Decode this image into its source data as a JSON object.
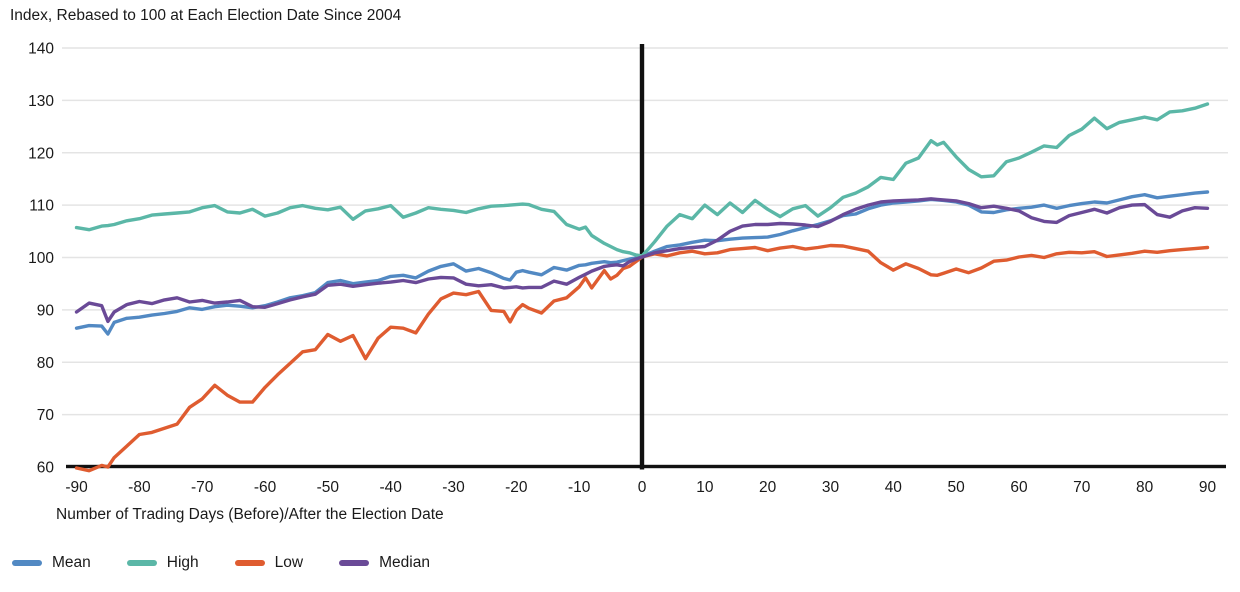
{
  "chart_data": {
    "type": "line",
    "title": "Index, Rebased to 100 at Each Election Date Since 2004",
    "xlabel": "Number of Trading Days (Before)/After the Election Date",
    "ylabel": "",
    "xlim": [
      -90,
      90
    ],
    "ylim": [
      60,
      140
    ],
    "x_ticks": [
      -90,
      -80,
      -70,
      -60,
      -50,
      -40,
      -30,
      -20,
      -10,
      0,
      10,
      20,
      30,
      40,
      50,
      60,
      70,
      80,
      90
    ],
    "y_ticks": [
      60,
      70,
      80,
      90,
      100,
      110,
      120,
      130,
      140
    ],
    "grid": "horizontal",
    "zero_vertical_line": true,
    "legend_position": "bottom-left",
    "colors": {
      "grid": "#e4e4e4",
      "axis": "#111111",
      "text": "#1a1a1a"
    },
    "x": [
      -90,
      -88,
      -86,
      -85,
      -84,
      -82,
      -80,
      -78,
      -76,
      -74,
      -72,
      -70,
      -68,
      -66,
      -64,
      -62,
      -60,
      -58,
      -56,
      -54,
      -52,
      -50,
      -48,
      -46,
      -44,
      -42,
      -40,
      -38,
      -36,
      -34,
      -32,
      -30,
      -28,
      -26,
      -24,
      -22,
      -21,
      -20,
      -19,
      -18,
      -16,
      -14,
      -12,
      -10,
      -9,
      -8,
      -6,
      -5,
      -4,
      -3,
      -2,
      -1,
      0,
      1,
      2,
      4,
      6,
      8,
      10,
      12,
      14,
      16,
      18,
      20,
      22,
      24,
      26,
      28,
      30,
      32,
      34,
      36,
      38,
      40,
      42,
      44,
      46,
      47,
      48,
      50,
      52,
      54,
      56,
      58,
      60,
      62,
      64,
      66,
      68,
      70,
      72,
      74,
      76,
      78,
      80,
      82,
      84,
      86,
      88,
      90
    ],
    "series": [
      {
        "name": "Mean",
        "color": "#5289c3",
        "values": [
          86.5,
          87.0,
          86.9,
          85.4,
          87.6,
          88.4,
          88.6,
          89.0,
          89.3,
          89.7,
          90.4,
          90.1,
          90.6,
          90.9,
          90.7,
          90.4,
          90.8,
          91.5,
          92.3,
          92.7,
          93.3,
          95.2,
          95.6,
          95.0,
          95.3,
          95.6,
          96.4,
          96.6,
          96.1,
          97.4,
          98.3,
          98.8,
          97.4,
          97.9,
          97.1,
          96.0,
          95.7,
          97.2,
          97.5,
          97.2,
          96.7,
          98.1,
          97.6,
          98.5,
          98.6,
          98.9,
          99.2,
          99.0,
          99.1,
          99.4,
          99.7,
          99.9,
          100.2,
          100.7,
          101.2,
          102.1,
          102.4,
          102.9,
          103.3,
          103.2,
          103.5,
          103.7,
          103.8,
          103.9,
          104.4,
          105.1,
          105.7,
          106.3,
          107.0,
          108.0,
          108.3,
          109.3,
          110.0,
          110.4,
          110.6,
          110.8,
          111.1,
          111.0,
          110.9,
          110.6,
          110.0,
          108.7,
          108.6,
          109.1,
          109.4,
          109.6,
          110.0,
          109.4,
          109.9,
          110.3,
          110.6,
          110.4,
          111.0,
          111.6,
          112.0,
          111.4,
          111.7,
          112.0,
          112.3,
          112.5
        ]
      },
      {
        "name": "High",
        "color": "#5bb7a7",
        "values": [
          105.7,
          105.3,
          106.0,
          106.1,
          106.3,
          107.0,
          107.4,
          108.1,
          108.3,
          108.5,
          108.7,
          109.5,
          109.9,
          108.7,
          108.5,
          109.2,
          107.9,
          108.5,
          109.5,
          109.9,
          109.4,
          109.1,
          109.6,
          107.3,
          108.9,
          109.3,
          109.9,
          107.7,
          108.5,
          109.5,
          109.2,
          109.0,
          108.6,
          109.3,
          109.8,
          109.9,
          110.0,
          110.1,
          110.2,
          110.1,
          109.2,
          108.8,
          106.3,
          105.4,
          105.8,
          104.2,
          102.7,
          102.1,
          101.5,
          101.1,
          100.9,
          100.5,
          100.3,
          101.6,
          103.0,
          106.0,
          108.2,
          107.4,
          110.0,
          108.2,
          110.4,
          108.6,
          110.9,
          109.2,
          107.8,
          109.3,
          109.9,
          107.9,
          109.5,
          111.5,
          112.3,
          113.5,
          115.3,
          114.9,
          118.0,
          119.0,
          122.3,
          121.5,
          122.0,
          119.2,
          116.8,
          115.4,
          115.6,
          118.3,
          119.0,
          120.1,
          121.3,
          121.0,
          123.3,
          124.5,
          126.6,
          124.6,
          125.8,
          126.3,
          126.8,
          126.3,
          127.8,
          128.0,
          128.5,
          129.3
        ]
      },
      {
        "name": "Low",
        "color": "#df5c30",
        "values": [
          59.8,
          59.3,
          60.3,
          60.0,
          61.8,
          64.0,
          66.2,
          66.6,
          67.4,
          68.2,
          71.4,
          73.0,
          75.6,
          73.7,
          72.4,
          72.4,
          75.2,
          77.6,
          79.8,
          82.0,
          82.4,
          85.3,
          84.0,
          85.1,
          80.7,
          84.6,
          86.7,
          86.5,
          85.6,
          89.2,
          92.1,
          93.2,
          92.9,
          93.5,
          89.9,
          89.7,
          87.7,
          89.9,
          91.0,
          90.3,
          89.4,
          91.7,
          92.3,
          94.4,
          96.1,
          94.2,
          97.5,
          95.9,
          96.6,
          97.9,
          98.3,
          99.2,
          100.1,
          100.4,
          100.7,
          100.3,
          100.9,
          101.2,
          100.7,
          100.9,
          101.5,
          101.7,
          101.9,
          101.3,
          101.8,
          102.1,
          101.6,
          101.9,
          102.3,
          102.2,
          101.7,
          101.2,
          99.0,
          97.6,
          98.8,
          97.9,
          96.7,
          96.6,
          97.0,
          97.8,
          97.1,
          98.0,
          99.3,
          99.5,
          100.1,
          100.4,
          100.0,
          100.7,
          101.0,
          100.9,
          101.1,
          100.2,
          100.5,
          100.8,
          101.2,
          101.0,
          101.3,
          101.5,
          101.7,
          101.9
        ]
      },
      {
        "name": "Median",
        "color": "#6a4a97",
        "values": [
          89.6,
          91.3,
          90.8,
          87.8,
          89.6,
          91.0,
          91.6,
          91.2,
          91.9,
          92.3,
          91.5,
          91.8,
          91.3,
          91.5,
          91.8,
          90.6,
          90.5,
          91.2,
          91.9,
          92.5,
          93.0,
          94.7,
          94.9,
          94.5,
          94.8,
          95.1,
          95.3,
          95.6,
          95.2,
          95.9,
          96.2,
          96.1,
          94.9,
          94.6,
          94.8,
          94.2,
          94.3,
          94.4,
          94.2,
          94.3,
          94.3,
          95.5,
          94.9,
          96.2,
          96.8,
          97.4,
          98.3,
          98.5,
          98.6,
          98.4,
          99.2,
          99.7,
          100.1,
          100.5,
          100.9,
          101.3,
          101.7,
          101.9,
          102.1,
          103.3,
          105.0,
          106.0,
          106.3,
          106.3,
          106.5,
          106.4,
          106.2,
          105.9,
          106.9,
          108.2,
          109.2,
          110.0,
          110.6,
          110.8,
          110.9,
          111.0,
          111.2,
          111.1,
          111.0,
          110.8,
          110.3,
          109.5,
          109.8,
          109.4,
          108.9,
          107.6,
          106.9,
          106.7,
          108.0,
          108.6,
          109.2,
          108.5,
          109.5,
          110.0,
          110.1,
          108.2,
          107.7,
          108.9,
          109.5,
          109.4
        ]
      }
    ]
  }
}
